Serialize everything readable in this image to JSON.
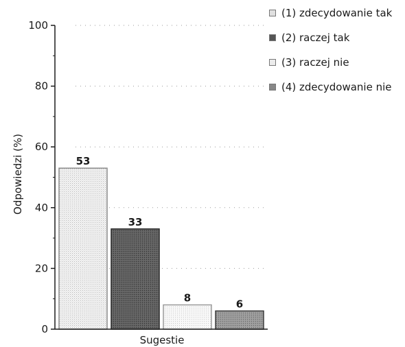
{
  "chart_data": {
    "type": "bar",
    "title": "",
    "xlabel": "Sugestie",
    "ylabel": "Odpowiedzi (%)",
    "ylim": [
      0,
      100
    ],
    "yticks": [
      "0",
      "20",
      "40",
      "60",
      "80",
      "100"
    ],
    "categories": [
      "(1) zdecydowanie tak",
      "(2) raczej tak",
      "(3) raczej nie",
      "(4) zdecydowanie nie"
    ],
    "values": [
      53,
      33,
      8,
      6
    ],
    "data_labels": [
      "53",
      "33",
      "8",
      "6"
    ],
    "grid": "dotted horizontal",
    "legend_placement": "right",
    "colors": [
      "#e0e0e0",
      "#555555",
      "#ececec",
      "#888888"
    ]
  },
  "legend": [
    {
      "label": "(1) zdecydowanie tak",
      "color": "#e0e0e0"
    },
    {
      "label": "(2) raczej tak",
      "color": "#555555"
    },
    {
      "label": "(3) raczej nie",
      "color": "#ececec"
    },
    {
      "label": "(4) zdecydowanie nie",
      "color": "#888888"
    }
  ]
}
